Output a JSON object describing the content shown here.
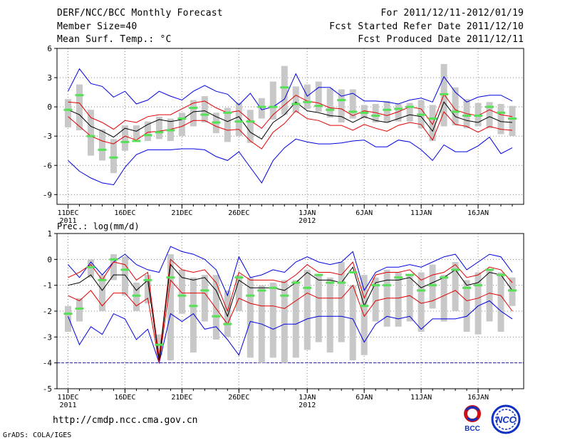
{
  "header": {
    "title": "DERF/NCC/BCC Monthly Forecast",
    "member_size": "Member Size=40",
    "variable1": "Mean Surf. Temp.: °C",
    "period": "For 2011/12/11-2012/01/19",
    "refer_date": "Fcst Started Refer Date 2011/12/10",
    "produced_date": "Fcst Produced Date 2011/12/11"
  },
  "footer": {
    "url": "http://cmdp.ncc.cma.gov.cn",
    "grads": "GrADS: COLA/IGES",
    "logo_bcc": "BCC",
    "logo_ncc": "NCC"
  },
  "colors": {
    "box": "#c8c8c8",
    "median": "#55e055",
    "mean": "#000000",
    "spread": "#e00000",
    "extreme": "#0000e0",
    "grid": "#888888"
  },
  "chart_data": [
    {
      "type": "box-and-line ensemble time series",
      "panel_label": "",
      "ylabel": "Mean Surf. Temp.: °C",
      "ylim": [
        -10,
        6
      ],
      "yticks": [
        -9,
        -6,
        -3,
        0,
        3,
        6
      ],
      "xlim": [
        0,
        39
      ],
      "xticks": [
        {
          "day": 0,
          "label": "11DEC",
          "year": "2011"
        },
        {
          "day": 5,
          "label": "16DEC"
        },
        {
          "day": 10,
          "label": "21DEC"
        },
        {
          "day": 15,
          "label": "26DEC"
        },
        {
          "day": 21,
          "label": "1JAN",
          "year": "2012"
        },
        {
          "day": 26,
          "label": "6JAN"
        },
        {
          "day": 31,
          "label": "11JAN"
        },
        {
          "day": 36,
          "label": "16JAN"
        }
      ],
      "grid": true,
      "days": [
        0,
        1,
        2,
        3,
        4,
        5,
        6,
        7,
        8,
        9,
        10,
        11,
        12,
        13,
        14,
        15,
        16,
        17,
        18,
        19,
        20,
        21,
        22,
        23,
        24,
        25,
        26,
        27,
        28,
        29,
        30,
        31,
        32,
        33,
        34,
        35,
        36,
        37,
        38,
        39
      ],
      "box_low": [
        -2.1,
        -2.4,
        -5.0,
        -5.5,
        -6.8,
        -4.5,
        -3.3,
        -3.5,
        -3.3,
        -3.5,
        -3.0,
        -2.0,
        -1.6,
        -2.7,
        -3.6,
        -3.0,
        -3.7,
        -1.2,
        -1.3,
        -0.8,
        -0.6,
        -0.2,
        -0.5,
        -1.1,
        -1.6,
        -1.2,
        -1.2,
        -1.6,
        -1.6,
        -1.5,
        -1.5,
        -2.2,
        -3.5,
        -2.0,
        -1.9,
        -2.2,
        -2.0,
        -2.2,
        -2.8,
        -3.0
      ],
      "box_high": [
        0.8,
        2.3,
        -0.3,
        -2.3,
        -3.3,
        -1.9,
        -1.9,
        -1.5,
        -1.0,
        -1.2,
        -0.6,
        0.7,
        1.1,
        -0.6,
        -0.1,
        0.4,
        -0.3,
        0.9,
        2.6,
        4.2,
        2.1,
        2.3,
        2.6,
        1.9,
        1.8,
        1.8,
        0.2,
        0.3,
        0.6,
        0.3,
        0.4,
        0.7,
        0.2,
        4.4,
        2.0,
        0.8,
        0.4,
        0.5,
        0.3,
        0.1
      ],
      "median": [
        -0.3,
        1.2,
        -3.0,
        -4.4,
        -5.2,
        -3.6,
        -3.5,
        -2.9,
        -2.6,
        -2.4,
        -1.2,
        -0.1,
        -0.8,
        -1.6,
        -0.6,
        -1.5,
        -1.5,
        0.0,
        0.0,
        2.0,
        0.3,
        0.5,
        0.1,
        -0.3,
        0.7,
        -0.5,
        -0.6,
        -0.9,
        -0.3,
        -0.2,
        0.0,
        -0.8,
        -1.2,
        1.3,
        -0.5,
        -0.9,
        -0.9,
        0.0,
        -0.6,
        -1.2
      ],
      "mean": [
        -0.3,
        -0.8,
        -2.0,
        -2.5,
        -3.1,
        -2.2,
        -2.5,
        -1.8,
        -1.3,
        -1.5,
        -1.3,
        -0.5,
        -0.4,
        -1.0,
        -1.5,
        -1.0,
        -2.6,
        -3.3,
        -1.6,
        -0.8,
        0.5,
        -0.4,
        -0.6,
        -0.9,
        -1.0,
        -1.6,
        -1.0,
        -1.4,
        -1.6,
        -1.2,
        -0.8,
        -1.0,
        -2.5,
        0.5,
        -1.0,
        -1.4,
        -1.6,
        -1.0,
        -1.5,
        -1.6
      ],
      "spread_high": [
        0.5,
        0.4,
        -1.1,
        -1.6,
        -2.3,
        -1.4,
        -1.6,
        -1.0,
        -0.8,
        -0.8,
        -0.2,
        0.4,
        0.6,
        -0.1,
        -0.6,
        -0.4,
        -1.4,
        -2.2,
        -0.8,
        0.2,
        1.2,
        0.6,
        0.4,
        -0.1,
        -0.2,
        -0.9,
        -0.4,
        -0.6,
        -0.9,
        -0.5,
        0.0,
        -0.2,
        -1.8,
        1.3,
        -0.3,
        -0.7,
        -0.9,
        -0.3,
        -0.8,
        -1.0
      ],
      "spread_low": [
        -1.0,
        -2.0,
        -3.0,
        -3.5,
        -3.8,
        -3.0,
        -3.4,
        -2.6,
        -2.5,
        -2.3,
        -2.0,
        -1.4,
        -1.4,
        -2.0,
        -2.4,
        -2.3,
        -3.5,
        -4.3,
        -2.6,
        -1.7,
        -0.4,
        -1.2,
        -1.4,
        -1.9,
        -1.9,
        -2.4,
        -1.8,
        -2.2,
        -2.5,
        -1.9,
        -1.6,
        -1.8,
        -3.4,
        -0.5,
        -1.8,
        -2.0,
        -2.6,
        -2.0,
        -2.3,
        -2.4
      ],
      "max": [
        1.6,
        3.9,
        2.4,
        2.1,
        1.0,
        1.6,
        0.3,
        0.7,
        1.6,
        1.1,
        0.7,
        1.6,
        2.2,
        1.6,
        1.3,
        0.2,
        1.4,
        -0.3,
        0.0,
        0.8,
        3.4,
        1.1,
        2.0,
        2.0,
        1.1,
        1.4,
        0.6,
        0.6,
        0.5,
        0.3,
        0.7,
        0.9,
        0.5,
        3.1,
        1.5,
        0.5,
        1.0,
        1.2,
        1.2,
        0.6
      ],
      "min": [
        -5.5,
        -6.6,
        -7.3,
        -7.8,
        -8.0,
        -6.2,
        -4.9,
        -4.4,
        -4.4,
        -4.4,
        -4.3,
        -4.3,
        -4.4,
        -5.1,
        -5.5,
        -4.6,
        -6.2,
        -7.8,
        -5.5,
        -4.2,
        -3.3,
        -3.6,
        -3.8,
        -3.8,
        -3.7,
        -3.5,
        -3.4,
        -4.1,
        -4.1,
        -3.4,
        -3.6,
        -4.4,
        -5.5,
        -3.9,
        -4.6,
        -4.6,
        -4.0,
        -3.1,
        -4.8,
        -4.2
      ]
    },
    {
      "type": "box-and-line ensemble time series",
      "panel_label": "Prec.: log(mm/d)",
      "ylabel": "log(mm/d)",
      "ylim": [
        -5,
        1
      ],
      "yticks": [
        -5,
        -4,
        -3,
        -2,
        -1,
        0,
        1
      ],
      "xlim": [
        0,
        39
      ],
      "xticks": [
        {
          "day": 0,
          "label": "11DEC",
          "year": "2011"
        },
        {
          "day": 5,
          "label": "16DEC"
        },
        {
          "day": 10,
          "label": "21DEC"
        },
        {
          "day": 15,
          "label": "26DEC"
        },
        {
          "day": 21,
          "label": "1JAN",
          "year": "2012"
        },
        {
          "day": 26,
          "label": "6JAN"
        },
        {
          "day": 31,
          "label": "11JAN"
        },
        {
          "day": 36,
          "label": "16JAN"
        }
      ],
      "grid": true,
      "threshold": -4,
      "days": [
        0,
        1,
        2,
        3,
        4,
        5,
        6,
        7,
        8,
        9,
        10,
        11,
        12,
        13,
        14,
        15,
        16,
        17,
        18,
        19,
        20,
        21,
        22,
        23,
        24,
        25,
        26,
        27,
        28,
        29,
        30,
        31,
        32,
        33,
        34,
        35,
        36,
        37,
        38,
        39
      ],
      "box_low": [
        -2.8,
        -2.4,
        -0.7,
        -2.0,
        -0.8,
        -1.4,
        -2.0,
        -1.7,
        -3.7,
        -3.9,
        -2.1,
        -3.6,
        -2.4,
        -3.1,
        -3.0,
        -2.0,
        -3.8,
        -4.0,
        -3.8,
        -4.0,
        -3.8,
        -3.5,
        -3.2,
        -3.6,
        -3.2,
        -3.9,
        -3.7,
        -2.4,
        -2.6,
        -2.6,
        -2.4,
        -2.8,
        -1.9,
        -2.4,
        -2.0,
        -2.8,
        -2.9,
        -2.4,
        -2.8,
        -1.8
      ],
      "box_high": [
        -1.8,
        -1.5,
        0.0,
        -0.6,
        0.2,
        0.1,
        -0.9,
        -0.6,
        -2.9,
        0.2,
        -0.4,
        -0.7,
        -0.6,
        -0.6,
        -1.2,
        -0.6,
        -0.7,
        -1.0,
        -0.9,
        -0.8,
        -0.8,
        -0.4,
        -0.6,
        -0.7,
        -0.1,
        -1.0,
        -0.6,
        -0.7,
        -0.4,
        -0.5,
        -0.6,
        -0.5,
        -0.2,
        -0.6,
        -0.1,
        -0.8,
        -0.5,
        -0.4,
        -0.5,
        -0.7
      ],
      "median": [
        -2.1,
        -1.9,
        -0.3,
        -0.8,
        0.0,
        -0.4,
        -1.4,
        -0.8,
        -3.3,
        -0.7,
        -1.4,
        -1.8,
        -1.2,
        -2.2,
        -2.5,
        -0.7,
        -1.4,
        -1.2,
        -1.1,
        -1.4,
        -0.9,
        -1.1,
        -0.6,
        -0.9,
        -0.9,
        -0.5,
        -1.8,
        -1.0,
        -1.0,
        -0.7,
        -0.6,
        -1.2,
        -1.0,
        -0.7,
        -0.4,
        -1.1,
        -1.0,
        -0.4,
        -0.6,
        -1.2
      ],
      "mean": [
        -1.0,
        -0.9,
        -0.6,
        -1.2,
        -0.6,
        -0.6,
        -1.2,
        -0.8,
        -3.9,
        -0.2,
        -0.7,
        -0.8,
        -0.7,
        -1.2,
        -2.2,
        -0.8,
        -1.1,
        -1.1,
        -1.1,
        -1.2,
        -0.9,
        -0.5,
        -0.8,
        -0.8,
        -0.9,
        -0.3,
        -1.8,
        -0.9,
        -0.8,
        -0.8,
        -0.7,
        -1.1,
        -0.9,
        -0.7,
        -0.4,
        -1.0,
        -0.9,
        -0.5,
        -0.6,
        -1.2
      ],
      "spread_high": [
        -0.7,
        -0.5,
        -0.2,
        -0.8,
        -0.1,
        -0.2,
        -0.8,
        -0.5,
        -3.8,
        0.0,
        -0.4,
        -0.5,
        -0.4,
        -0.9,
        -2.0,
        -0.5,
        -0.8,
        -0.8,
        -0.8,
        -0.9,
        -0.6,
        -0.2,
        -0.5,
        -0.5,
        -0.6,
        -0.1,
        -1.5,
        -0.6,
        -0.5,
        -0.5,
        -0.4,
        -0.8,
        -0.6,
        -0.5,
        -0.2,
        -0.7,
        -0.6,
        -0.3,
        -0.4,
        -0.9
      ],
      "spread_low": [
        -1.4,
        -1.6,
        -1.2,
        -1.8,
        -1.3,
        -1.3,
        -1.8,
        -1.5,
        -4.0,
        -0.8,
        -1.3,
        -1.3,
        -1.3,
        -1.9,
        -2.5,
        -1.5,
        -1.7,
        -1.8,
        -1.8,
        -1.9,
        -1.6,
        -1.3,
        -1.5,
        -1.5,
        -1.5,
        -1.0,
        -2.2,
        -1.6,
        -1.5,
        -1.5,
        -1.4,
        -1.7,
        -1.6,
        -1.4,
        -1.2,
        -1.6,
        -1.5,
        -1.3,
        -1.4,
        -2.0
      ],
      "max": [
        -0.2,
        -0.7,
        -0.1,
        -0.6,
        -0.1,
        0.2,
        -0.2,
        -0.4,
        -0.5,
        0.5,
        0.3,
        0.2,
        0.0,
        -0.4,
        -1.4,
        0.1,
        -0.7,
        -0.6,
        -0.4,
        -0.5,
        -0.1,
        0.1,
        -0.1,
        -0.2,
        -0.1,
        0.3,
        -1.2,
        -0.5,
        -0.3,
        -0.3,
        -0.2,
        -0.3,
        -0.1,
        0.1,
        0.2,
        -0.4,
        -0.1,
        0.2,
        0.1,
        -0.5
      ],
      "min": [
        -2.2,
        -3.3,
        -2.6,
        -2.9,
        -2.1,
        -2.3,
        -3.1,
        -2.7,
        -4.0,
        -2.1,
        -2.4,
        -2.1,
        -2.7,
        -2.6,
        -3.1,
        -3.7,
        -2.4,
        -2.5,
        -2.7,
        -2.5,
        -2.5,
        -2.3,
        -2.2,
        -2.2,
        -2.2,
        -2.3,
        -3.2,
        -2.5,
        -2.2,
        -2.3,
        -2.2,
        -2.7,
        -2.3,
        -2.3,
        -2.3,
        -2.2,
        -1.8,
        -1.6,
        -2.0,
        -2.3
      ]
    }
  ]
}
